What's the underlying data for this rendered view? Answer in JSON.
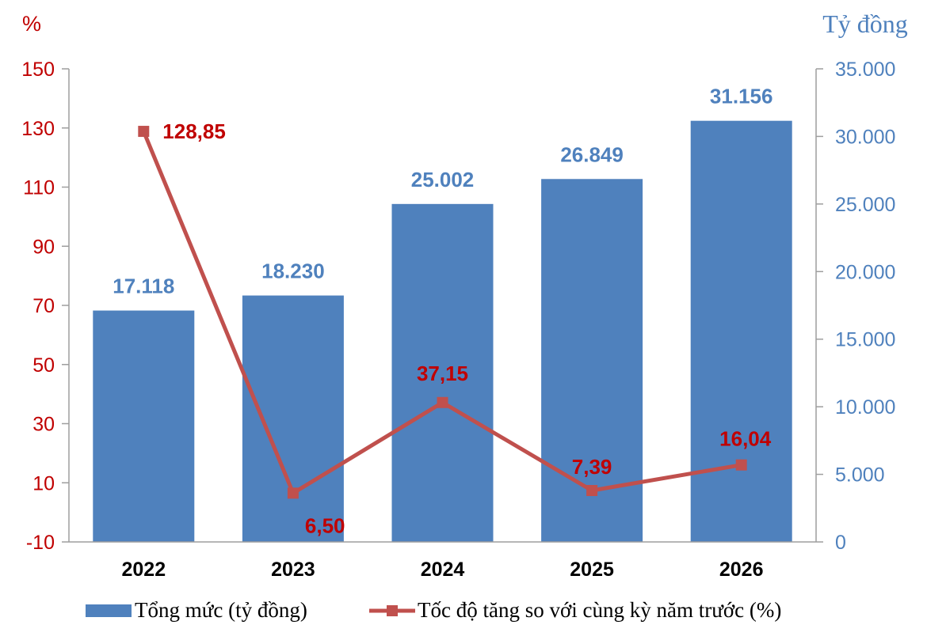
{
  "chart_data": {
    "type": "bar",
    "categories": [
      "2022",
      "2023",
      "2024",
      "2025",
      "2026"
    ],
    "series": [
      {
        "name": "Tổng mức (tỷ đồng)",
        "type": "bar",
        "axis": "right",
        "values": [
          17118,
          18230,
          25002,
          26849,
          31156
        ],
        "labels": [
          "17.118",
          "18.230",
          "25.002",
          "26.849",
          "31.156"
        ],
        "color": "#4F81BD"
      },
      {
        "name": "Tốc độ tăng so với cùng kỳ năm trước (%)",
        "type": "line",
        "axis": "left",
        "values": [
          128.85,
          6.5,
          37.15,
          7.39,
          16.04
        ],
        "labels": [
          "128,85",
          "6,50",
          "37,15",
          "7,39",
          "16,04"
        ],
        "color": "#C0504D"
      }
    ],
    "left_axis": {
      "unit_label": "%",
      "range": [
        -10,
        150
      ],
      "ticks": [
        -10,
        10,
        30,
        50,
        70,
        90,
        110,
        130,
        150
      ],
      "tick_labels": [
        "-10",
        "10",
        "30",
        "50",
        "70",
        "90",
        "110",
        "130",
        "150"
      ],
      "color": "#C00000"
    },
    "right_axis": {
      "unit_label": "Tỷ đồng",
      "range": [
        0,
        35000
      ],
      "ticks": [
        0,
        5000,
        10000,
        15000,
        20000,
        25000,
        30000,
        35000
      ],
      "tick_labels": [
        "0",
        "5.000",
        "10.000",
        "15.000",
        "20.000",
        "25.000",
        "30.000",
        "35.000"
      ],
      "color": "#4F81BD"
    },
    "grid": false,
    "legend": {
      "position": "bottom",
      "items": [
        "Tổng mức (tỷ đồng)",
        "Tốc độ tăng so với cùng kỳ năm trước (%)"
      ]
    }
  }
}
